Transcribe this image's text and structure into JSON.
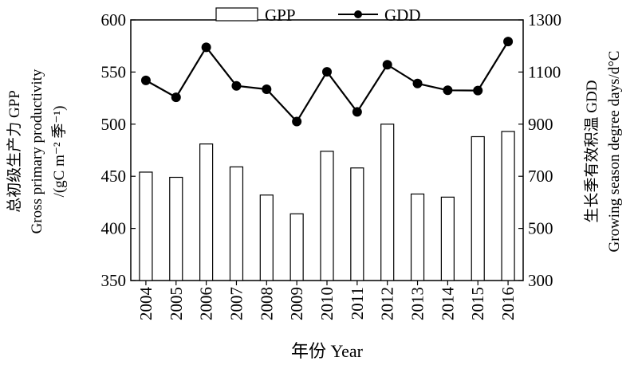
{
  "chart_data": {
    "type": "bar+line",
    "categories": [
      "2004",
      "2005",
      "2006",
      "2007",
      "2008",
      "2009",
      "2010",
      "2011",
      "2012",
      "2013",
      "2014",
      "2015",
      "2016"
    ],
    "series": [
      {
        "name": "GPP",
        "type": "bar",
        "axis": "left",
        "values": [
          454,
          449,
          481,
          459,
          432,
          414,
          474,
          458,
          500,
          433,
          430,
          488,
          493
        ]
      },
      {
        "name": "GDD",
        "type": "line",
        "axis": "right",
        "values": [
          1068,
          1003,
          1195,
          1047,
          1034,
          910,
          1101,
          947,
          1128,
          1056,
          1030,
          1029,
          1217
        ]
      }
    ],
    "xlabel": "年份 Year",
    "ylabel_left": [
      "总初级生产力 GPP",
      "Gross primary productivity",
      "/(gC m⁻² 季⁻¹)"
    ],
    "ylabel_right": [
      "生长季有效积温 GDD",
      "Growing season degree days/d°C"
    ],
    "ylim_left": [
      350,
      600
    ],
    "yticks_left": [
      350,
      400,
      450,
      500,
      550,
      600
    ],
    "ylim_right": [
      300,
      1300
    ],
    "yticks_right": [
      300,
      500,
      700,
      900,
      1100,
      1300
    ],
    "legend_position": "top-center",
    "grid": false
  }
}
